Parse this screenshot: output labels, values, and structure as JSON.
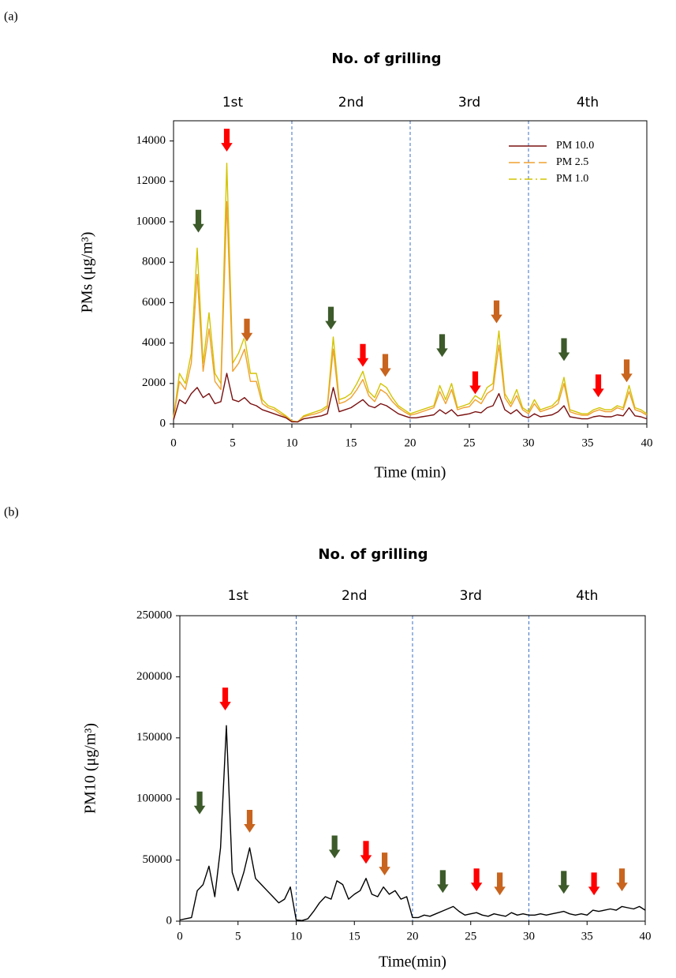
{
  "chart_data": [
    {
      "type": "line",
      "panel": "(a)",
      "title": "No. of grilling",
      "phase_labels": [
        "1st",
        "2nd",
        "3rd",
        "4th"
      ],
      "phase_lines": [
        10,
        20,
        30
      ],
      "xlabel": "Time (min)",
      "ylabel": "PMs (μg/m³)",
      "xlim": [
        0,
        40
      ],
      "xticks": [
        0,
        5,
        10,
        15,
        20,
        25,
        30,
        35,
        40
      ],
      "ylim": [
        0,
        15000
      ],
      "yticks": [
        0,
        2000,
        4000,
        6000,
        8000,
        10000,
        12000,
        14000
      ],
      "legend": "upper right",
      "x": [
        0,
        0.5,
        1,
        1.5,
        2,
        2.5,
        3,
        3.5,
        4,
        4.5,
        5,
        5.5,
        6,
        6.5,
        7,
        7.5,
        8,
        8.5,
        9,
        9.5,
        10,
        10.5,
        11,
        11.5,
        12,
        12.5,
        13,
        13.5,
        14,
        14.5,
        15,
        15.5,
        16,
        16.5,
        17,
        17.5,
        18,
        18.5,
        19,
        19.5,
        20,
        20.5,
        21,
        21.5,
        22,
        22.5,
        23,
        23.5,
        24,
        24.5,
        25,
        25.5,
        26,
        26.5,
        27,
        27.5,
        28,
        28.5,
        29,
        29.5,
        30,
        30.5,
        31,
        31.5,
        32,
        32.5,
        33,
        33.5,
        34,
        34.5,
        35,
        35.5,
        36,
        36.5,
        37,
        37.5,
        38,
        38.5,
        39,
        39.5,
        40
      ],
      "series": [
        {
          "name": "PM 1.0",
          "color": "#d2c400",
          "dash": "dashdot",
          "values": [
            300,
            2500,
            2000,
            3500,
            8700,
            3000,
            5500,
            2500,
            2000,
            12900,
            3000,
            3500,
            4300,
            2500,
            2500,
            1200,
            900,
            800,
            600,
            400,
            150,
            100,
            400,
            500,
            600,
            700,
            900,
            4300,
            1200,
            1300,
            1500,
            2000,
            2600,
            1600,
            1300,
            2000,
            1800,
            1300,
            900,
            700,
            500,
            600,
            700,
            800,
            900,
            1900,
            1200,
            2000,
            800,
            900,
            1000,
            1400,
            1200,
            1800,
            2000,
            4600,
            1500,
            1000,
            1700,
            800,
            600,
            1200,
            700,
            800,
            900,
            1200,
            2300,
            700,
            600,
            500,
            500,
            700,
            800,
            700,
            700,
            900,
            800,
            1900,
            800,
            700,
            500
          ]
        },
        {
          "name": "PM 2.5",
          "color": "#f0a030",
          "dash": "longdash",
          "values": [
            250,
            2100,
            1700,
            3000,
            7400,
            2600,
            4700,
            2100,
            1700,
            11000,
            2600,
            3000,
            3700,
            2100,
            2100,
            1000,
            800,
            700,
            500,
            350,
            130,
            90,
            350,
            430,
            500,
            600,
            800,
            3700,
            1000,
            1100,
            1300,
            1700,
            2200,
            1400,
            1100,
            1700,
            1500,
            1100,
            800,
            600,
            430,
            500,
            600,
            700,
            800,
            1600,
            1000,
            1700,
            700,
            800,
            850,
            1200,
            1000,
            1500,
            1700,
            3900,
            1300,
            850,
            1400,
            700,
            500,
            1000,
            600,
            700,
            800,
            1000,
            2000,
            600,
            500,
            430,
            430,
            600,
            700,
            600,
            600,
            800,
            700,
            1600,
            700,
            600,
            430
          ]
        },
        {
          "name": "PM 10.0",
          "color": "#7a1010",
          "dash": "solid",
          "values": [
            200,
            1200,
            1000,
            1500,
            1800,
            1300,
            1500,
            1000,
            1100,
            2500,
            1200,
            1100,
            1300,
            1000,
            900,
            700,
            600,
            500,
            400,
            300,
            100,
            100,
            250,
            300,
            350,
            400,
            500,
            1800,
            600,
            700,
            800,
            1000,
            1200,
            900,
            800,
            1000,
            900,
            700,
            500,
            400,
            300,
            300,
            350,
            400,
            450,
            700,
            500,
            700,
            400,
            450,
            500,
            600,
            550,
            800,
            900,
            1500,
            700,
            500,
            700,
            400,
            300,
            500,
            350,
            400,
            450,
            600,
            900,
            350,
            300,
            250,
            250,
            350,
            400,
            350,
            350,
            450,
            400,
            800,
            400,
            350,
            250
          ]
        }
      ],
      "markers": [
        {
          "x": 2.1,
          "y": 9440,
          "color": "#3c5a2a"
        },
        {
          "x": 4.5,
          "y": 13450,
          "color": "#ff0000"
        },
        {
          "x": 6.2,
          "y": 4050,
          "color": "#c8641e"
        },
        {
          "x": 13.3,
          "y": 4640,
          "color": "#3c5a2a"
        },
        {
          "x": 16.0,
          "y": 2800,
          "color": "#ff0000"
        },
        {
          "x": 17.9,
          "y": 2300,
          "color": "#c8641e"
        },
        {
          "x": 22.7,
          "y": 3280,
          "color": "#3c5a2a"
        },
        {
          "x": 25.5,
          "y": 1440,
          "color": "#ff0000"
        },
        {
          "x": 27.3,
          "y": 4950,
          "color": "#c8641e"
        },
        {
          "x": 33.0,
          "y": 3080,
          "color": "#3c5a2a"
        },
        {
          "x": 35.9,
          "y": 1290,
          "color": "#ff0000"
        },
        {
          "x": 38.3,
          "y": 2030,
          "color": "#c8641e"
        }
      ]
    },
    {
      "type": "line",
      "panel": "(b)",
      "title": "No. of grilling",
      "phase_labels": [
        "1st",
        "2nd",
        "3rd",
        "4th"
      ],
      "phase_lines": [
        10,
        20,
        30
      ],
      "xlabel": "Time(min)",
      "ylabel": "PM10 (μg/m³)",
      "xlim": [
        0,
        40
      ],
      "xticks": [
        0,
        5,
        10,
        15,
        20,
        25,
        30,
        35,
        40
      ],
      "ylim": [
        0,
        250000
      ],
      "yticks": [
        0,
        50000,
        100000,
        150000,
        200000,
        250000
      ],
      "x": [
        0,
        0.5,
        1,
        1.5,
        2,
        2.5,
        3,
        3.5,
        4,
        4.5,
        5,
        5.5,
        6,
        6.5,
        7,
        7.5,
        8,
        8.5,
        9,
        9.5,
        10,
        10.5,
        11,
        11.5,
        12,
        12.5,
        13,
        13.5,
        14,
        14.5,
        15,
        15.5,
        16,
        16.5,
        17,
        17.5,
        18,
        18.5,
        19,
        19.5,
        20,
        20.5,
        21,
        21.5,
        22,
        22.5,
        23,
        23.5,
        24,
        24.5,
        25,
        25.5,
        26,
        26.5,
        27,
        27.5,
        28,
        28.5,
        29,
        29.5,
        30,
        30.5,
        31,
        31.5,
        32,
        32.5,
        33,
        33.5,
        34,
        34.5,
        35,
        35.5,
        36,
        36.5,
        37,
        37.5,
        38,
        38.5,
        39,
        39.5,
        40
      ],
      "series": [
        {
          "color": "#000000",
          "dash": "solid",
          "values": [
            1000,
            2000,
            3000,
            25000,
            30000,
            45000,
            20000,
            60000,
            160000,
            40000,
            25000,
            40000,
            60000,
            35000,
            30000,
            25000,
            20000,
            15000,
            18000,
            28000,
            1000,
            500,
            2000,
            8000,
            15000,
            20000,
            18000,
            33000,
            30000,
            18000,
            22000,
            25000,
            35000,
            22000,
            20000,
            28000,
            22000,
            25000,
            18000,
            20000,
            3000,
            3000,
            5000,
            4000,
            6000,
            8000,
            10000,
            12000,
            8000,
            5000,
            6000,
            7000,
            5000,
            4000,
            6000,
            5000,
            4000,
            7000,
            5000,
            6000,
            5000,
            5000,
            6000,
            5000,
            6000,
            7000,
            8000,
            6000,
            5000,
            6000,
            5000,
            9000,
            8000,
            9000,
            10000,
            9000,
            12000,
            11000,
            10000,
            12000,
            9000
          ]
        }
      ],
      "markers": [
        {
          "x": 1.7,
          "y": 87000,
          "color": "#3c5a2a"
        },
        {
          "x": 3.9,
          "y": 172000,
          "color": "#ff0000"
        },
        {
          "x": 6.0,
          "y": 72000,
          "color": "#c8641e"
        },
        {
          "x": 13.3,
          "y": 51000,
          "color": "#3c5a2a"
        },
        {
          "x": 16.0,
          "y": 46500,
          "color": "#ff0000"
        },
        {
          "x": 17.6,
          "y": 37000,
          "color": "#c8641e"
        },
        {
          "x": 22.6,
          "y": 22600,
          "color": "#3c5a2a"
        },
        {
          "x": 25.5,
          "y": 24000,
          "color": "#ff0000"
        },
        {
          "x": 27.5,
          "y": 20700,
          "color": "#c8641e"
        },
        {
          "x": 33.0,
          "y": 22000,
          "color": "#3c5a2a"
        },
        {
          "x": 35.6,
          "y": 20700,
          "color": "#ff0000"
        },
        {
          "x": 38.0,
          "y": 24000,
          "color": "#c8641e"
        }
      ]
    }
  ]
}
